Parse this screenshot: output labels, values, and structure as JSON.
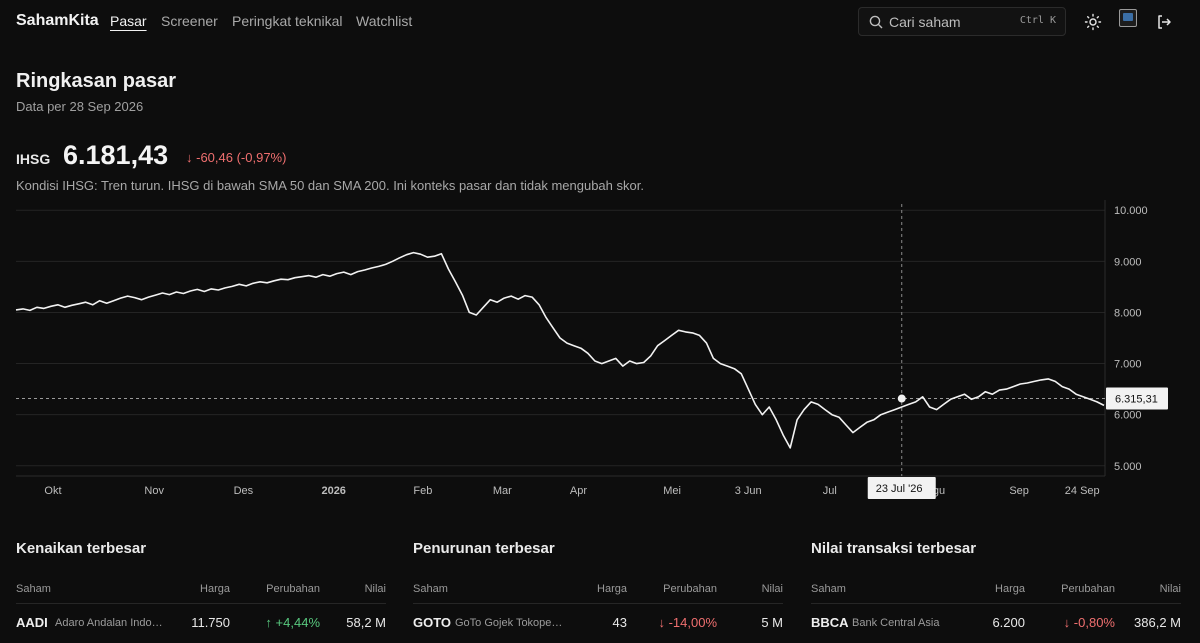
{
  "nav": {
    "brand": "SahamKita",
    "links": [
      "Pasar",
      "Screener",
      "Peringkat teknikal",
      "Watchlist"
    ],
    "active": "Pasar",
    "search_placeholder": "Cari saham",
    "search_shortcut": "Ctrl K"
  },
  "summary": {
    "title": "Ringkasan pasar",
    "subtitle": "Data per 28 Sep 2026",
    "index_label": "IHSG",
    "index_value": "6.181,43",
    "index_change": "-60,46 (-0,97%)",
    "index_note": "Kondisi IHSG: Tren turun. IHSG di bawah SMA 50 dan SMA 200. Ini konteks pasar dan tidak mengubah skor."
  },
  "chart_data": {
    "type": "line",
    "series": [
      {
        "values": [
          8050,
          8070,
          8040,
          8100,
          8080,
          8120,
          8150,
          8100,
          8140,
          8170,
          8200,
          8150,
          8230,
          8180,
          8230,
          8280,
          8320,
          8290,
          8250,
          8300,
          8340,
          8380,
          8350,
          8400,
          8370,
          8420,
          8450,
          8410,
          8460,
          8440,
          8480,
          8510,
          8550,
          8520,
          8570,
          8600,
          8580,
          8620,
          8650,
          8640,
          8680,
          8700,
          8720,
          8690,
          8740,
          8710,
          8760,
          8790,
          8740,
          8800,
          8830,
          8870,
          8900,
          8940,
          9000,
          9070,
          9130,
          9170,
          9140,
          9080,
          9100,
          9150,
          8850,
          8600,
          8340,
          8000,
          7950,
          8100,
          8250,
          8200,
          8280,
          8320,
          8260,
          8330,
          8300,
          8150,
          7900,
          7700,
          7500,
          7400,
          7350,
          7300,
          7200,
          7050,
          7000,
          7050,
          7100,
          6950,
          7050,
          7000,
          7020,
          7150,
          7350,
          7450,
          7550,
          7650,
          7620,
          7600,
          7550,
          7400,
          7100,
          7000,
          6950,
          6900,
          6800,
          6500,
          6200,
          6000,
          6150,
          5900,
          5600,
          5350,
          5900,
          6100,
          6250,
          6200,
          6100,
          6000,
          5950,
          5800,
          5650,
          5750,
          5850,
          5900,
          6000,
          6050,
          6100,
          6150,
          6200,
          6250,
          6350,
          6150,
          6100,
          6200,
          6300,
          6350,
          6400,
          6300,
          6350,
          6450,
          6400,
          6480,
          6500,
          6550,
          6600,
          6620,
          6650,
          6680,
          6700,
          6650,
          6550,
          6500,
          6400,
          6350,
          6300,
          6250,
          6181
        ]
      }
    ],
    "x_labels": [
      "Okt",
      "Nov",
      "Des",
      "2026",
      "Feb",
      "Mar",
      "Apr",
      "Mei",
      "3 Jun",
      "Jul",
      "23 Jul '26",
      "Agu",
      "Sep",
      "24 Sep"
    ],
    "y_ticks": [
      "10.000",
      "9.000",
      "8.000",
      "7.000",
      "6.000",
      "5.000"
    ],
    "ylim": [
      4800,
      10200
    ],
    "reference_value": 6315.31,
    "reference_label": "6.315,31",
    "crosshair_label": "23 Jul '26",
    "grid": true
  },
  "colors": {
    "up": "#58c87e",
    "down": "#ef6f6f",
    "line": "#f2f2f2"
  },
  "tables": [
    {
      "title": "Kenaikan terbesar",
      "headers": [
        "Saham",
        "Harga",
        "Perubahan",
        "Nilai"
      ],
      "rows": [
        {
          "sym": "AADI",
          "name": "Adaro Andalan Indonesia",
          "price": "11.750",
          "change": "+4,44%",
          "dir": "up",
          "value": "58,2 M"
        }
      ]
    },
    {
      "title": "Penurunan terbesar",
      "headers": [
        "Saham",
        "Harga",
        "Perubahan",
        "Nilai"
      ],
      "rows": [
        {
          "sym": "GOTO",
          "name": "GoTo Gojek Tokopedia",
          "price": "43",
          "change": "-14,00%",
          "dir": "down",
          "value": "5 M"
        }
      ]
    },
    {
      "title": "Nilai transaksi terbesar",
      "headers": [
        "Saham",
        "Harga",
        "Perubahan",
        "Nilai"
      ],
      "rows": [
        {
          "sym": "BBCA",
          "name": "Bank Central Asia",
          "price": "6.200",
          "change": "-0,80%",
          "dir": "down",
          "value": "386,2 M"
        }
      ]
    }
  ]
}
